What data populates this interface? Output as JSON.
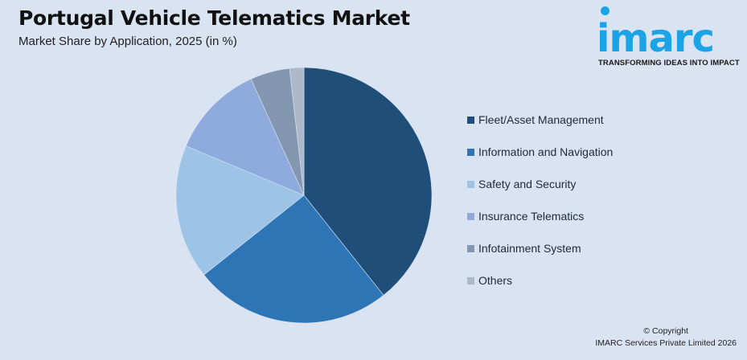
{
  "header": {
    "title": "Portugal Vehicle Telematics Market",
    "subtitle": "Market Share by Application, 2025 (in %)"
  },
  "logo": {
    "word": "imarc",
    "tagline": "TRANSFORMING IDEAS INTO IMPACT",
    "color": "#1ba3e8"
  },
  "footer": {
    "copyright": "© Copyright",
    "company": "IMARC Services Private Limited 2026"
  },
  "chart_data": {
    "type": "pie",
    "title": "Portugal Vehicle Telematics Market",
    "subtitle": "Market Share by Application, 2025 (in %)",
    "categories": [
      "Fleet/Asset Management",
      "Information and Navigation",
      "Safety and Security",
      "Insurance Telematics",
      "Infotainment System",
      "Others"
    ],
    "values": [
      39.3,
      25.0,
      17.0,
      11.9,
      5.0,
      1.8
    ],
    "colors": [
      "#1f4e79",
      "#2e75b6",
      "#9dc3e6",
      "#8faadc",
      "#8497b0",
      "#adb9ca"
    ],
    "start_angle_deg": 0,
    "direction": "clockwise",
    "legend_position": "right",
    "data_labels": false
  }
}
